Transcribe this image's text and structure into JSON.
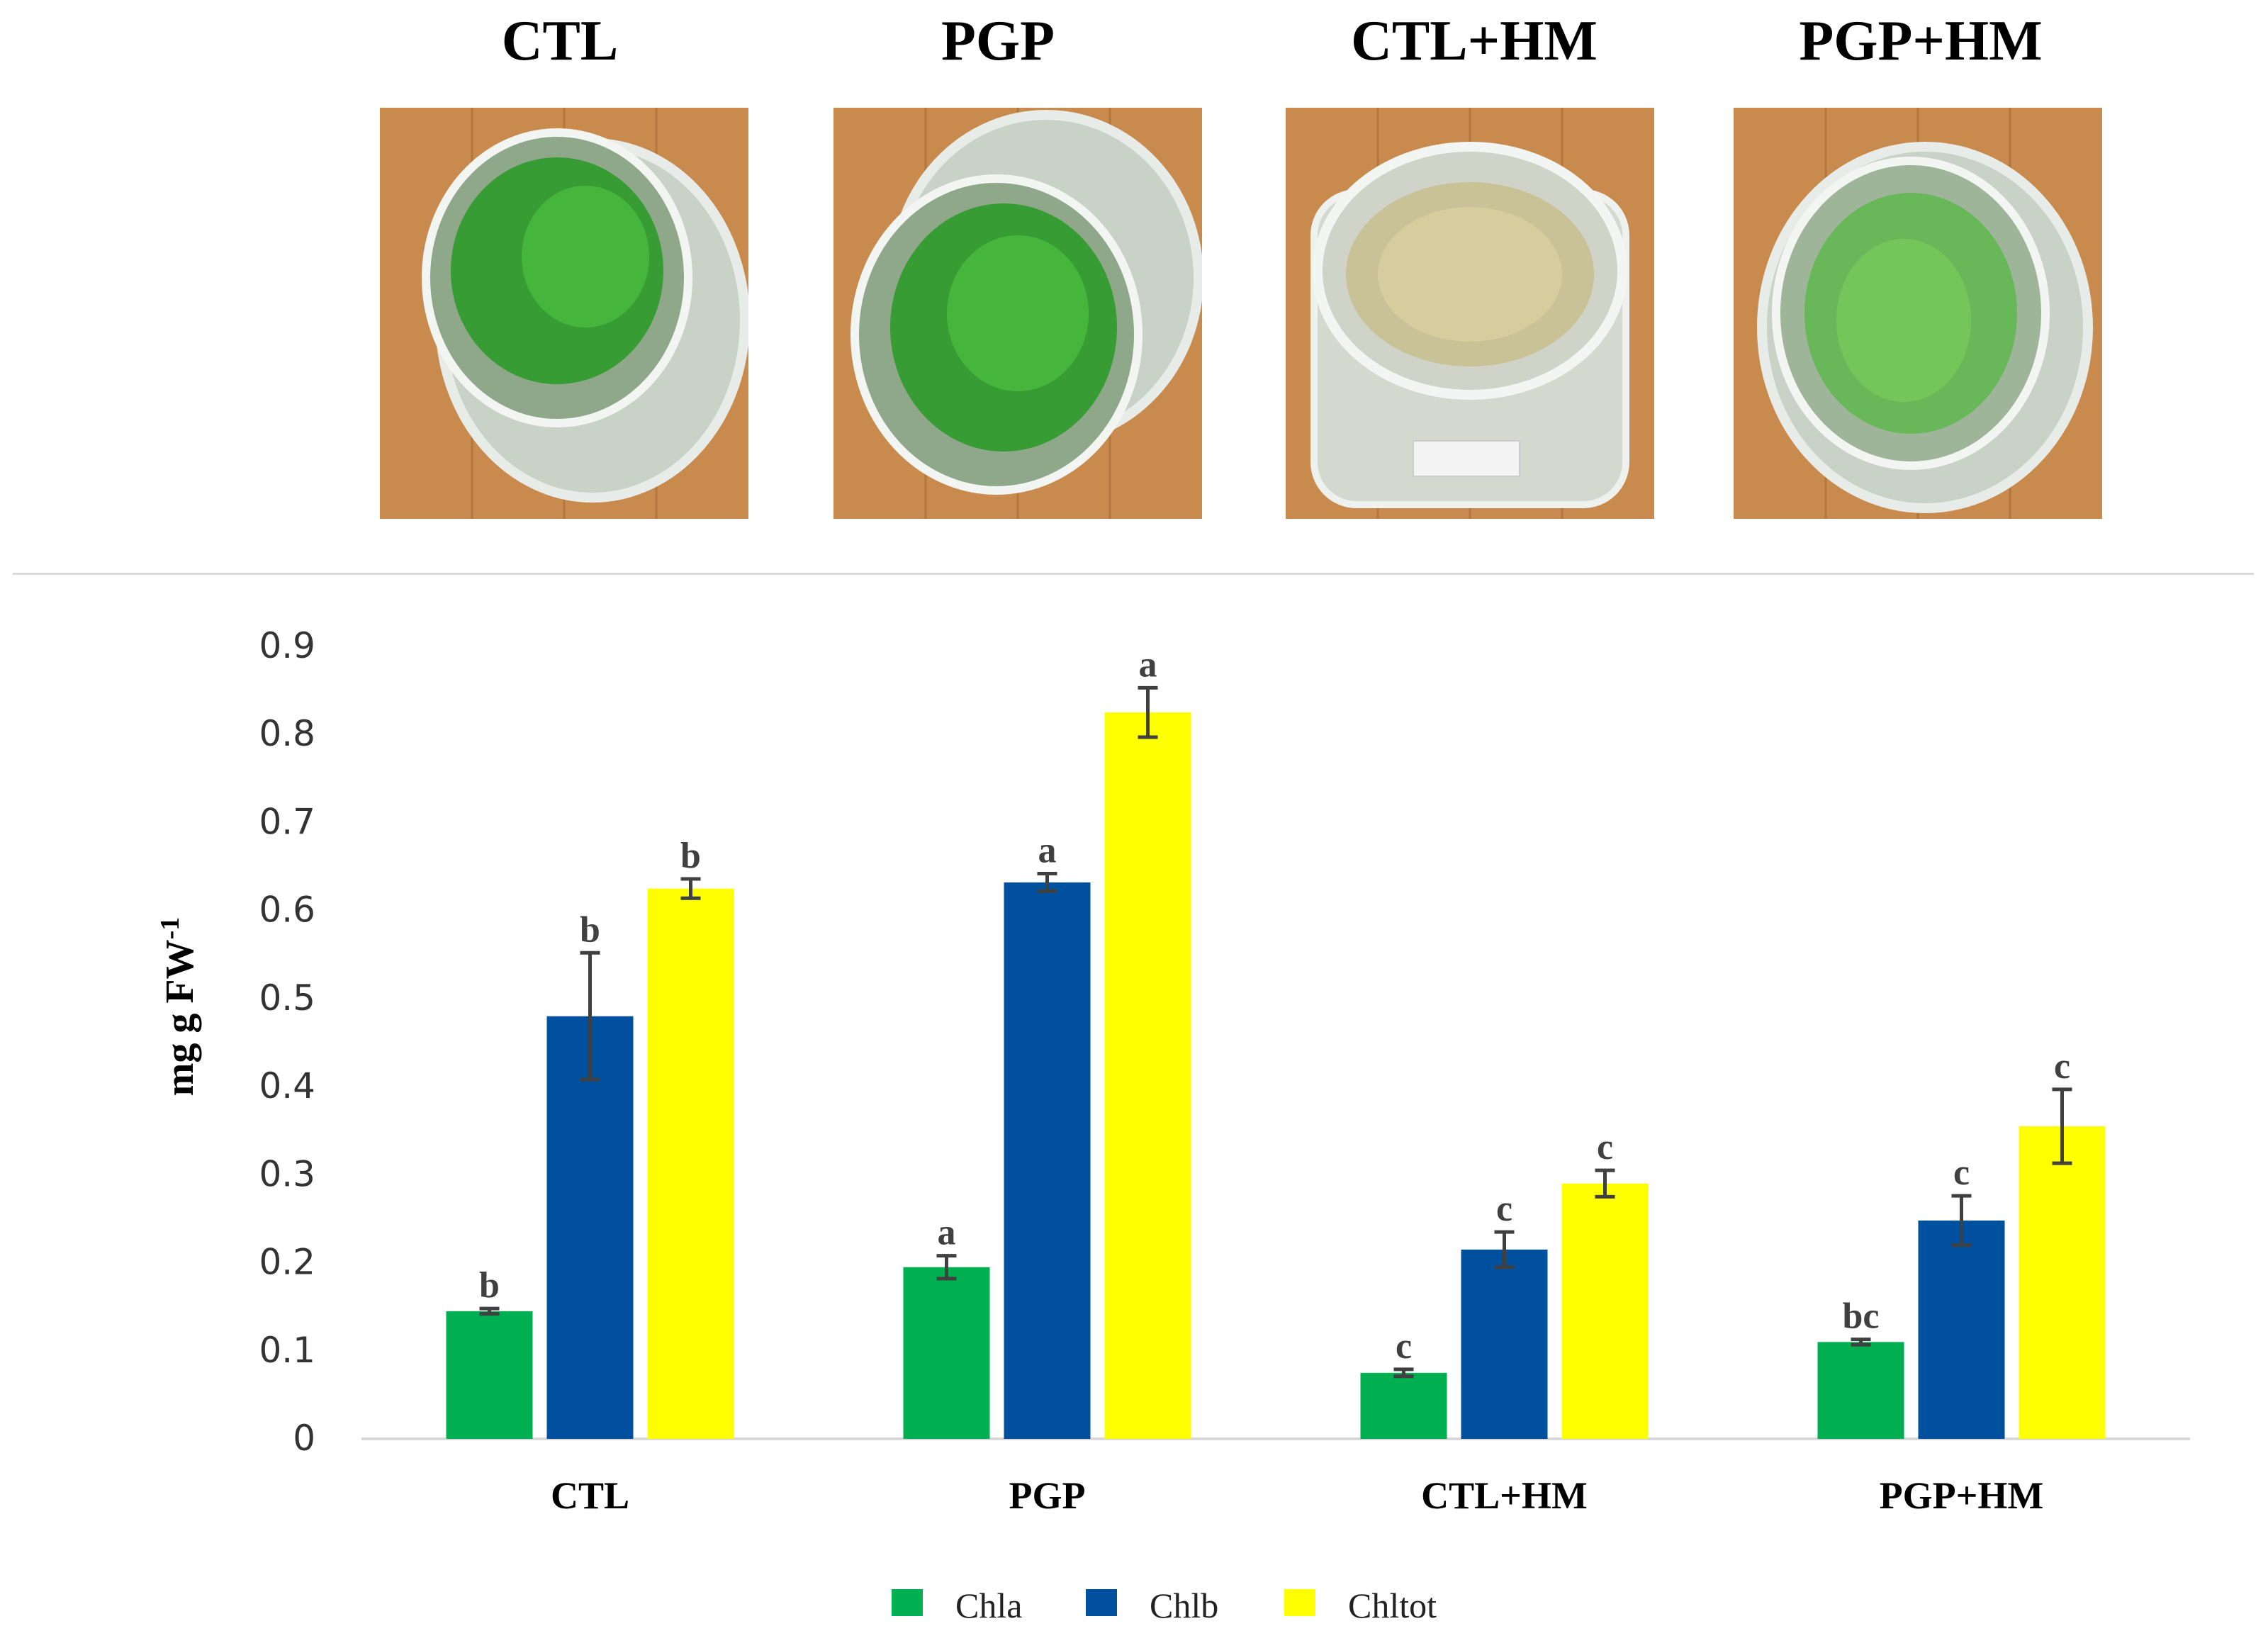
{
  "photos": [
    {
      "label": "CTL",
      "plants": "dense-green"
    },
    {
      "label": "PGP",
      "plants": "dense-green"
    },
    {
      "label": "CTL+HM",
      "plants": "pale-yellow"
    },
    {
      "label": "PGP+HM",
      "plants": "sparse-green"
    }
  ],
  "chart_data": {
    "type": "bar",
    "title": "",
    "xlabel": "",
    "ylabel": "mg g FW-1",
    "ylabel_base": "mg g FW",
    "ylabel_exp": "-1",
    "ylim": [
      0,
      0.9
    ],
    "yticks": [
      "0",
      "0.1",
      "0.2",
      "0.3",
      "0.4",
      "0.5",
      "0.6",
      "0.7",
      "0.8",
      "0.9"
    ],
    "categories": [
      "CTL",
      "PGP",
      "CTL+HM",
      "PGP+HM"
    ],
    "series": [
      {
        "name": "Chla",
        "color": "#00b050",
        "values": [
          0.145,
          0.195,
          0.075,
          0.11
        ],
        "errors": [
          0.003,
          0.013,
          0.004,
          0.003
        ],
        "letters": [
          "b",
          "a",
          "c",
          "bc"
        ]
      },
      {
        "name": "Chlb",
        "color": "#0050a0",
        "values": [
          0.48,
          0.632,
          0.215,
          0.248
        ],
        "errors": [
          0.072,
          0.01,
          0.02,
          0.028
        ],
        "letters": [
          "b",
          "a",
          "c",
          "c"
        ]
      },
      {
        "name": "Chltot",
        "color": "#ffff00",
        "values": [
          0.625,
          0.825,
          0.29,
          0.355
        ],
        "errors": [
          0.011,
          0.028,
          0.015,
          0.042
        ],
        "letters": [
          "b",
          "a",
          "c",
          "c"
        ]
      }
    ],
    "legend_position": "bottom"
  }
}
